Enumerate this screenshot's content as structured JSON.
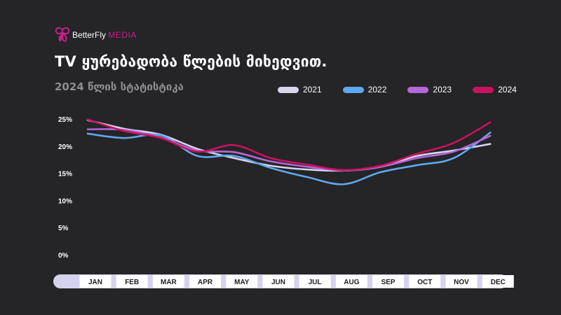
{
  "brand": {
    "name": "BetterFly",
    "suffix": "MEDIA",
    "accent_color": "#c4218a"
  },
  "chart_data": {
    "type": "line",
    "title": "TV ყურებადობა წლების მიხედვით.",
    "subtitle": "2024 წლის სტატისტიკა",
    "categories": [
      "JAN",
      "FEB",
      "MAR",
      "APR",
      "MAY",
      "JUN",
      "JUL",
      "AUG",
      "SEP",
      "OCT",
      "NOV",
      "DEC"
    ],
    "y_ticks": [
      "0%",
      "5%",
      "10%",
      "15%",
      "20%",
      "25%"
    ],
    "ylim": [
      0,
      25
    ],
    "legend_position": "top-right",
    "grid": false,
    "series": [
      {
        "name": "2021",
        "color": "#d7d5ee",
        "values": [
          24.8,
          23.2,
          22.1,
          19.5,
          17.8,
          16.4,
          15.7,
          15.5,
          16.2,
          18.2,
          19.2,
          20.4
        ]
      },
      {
        "name": "2022",
        "color": "#5fa8ee",
        "values": [
          22.3,
          21.5,
          22.0,
          18.2,
          18.2,
          16.0,
          14.3,
          13.0,
          15.2,
          16.5,
          17.8,
          22.5
        ]
      },
      {
        "name": "2023",
        "color": "#b467d8",
        "values": [
          23.1,
          23.0,
          21.6,
          19.2,
          18.9,
          17.2,
          16.2,
          15.5,
          16.2,
          17.8,
          19.0,
          21.9
        ]
      },
      {
        "name": "2024",
        "color": "#c8145f",
        "values": [
          24.9,
          22.8,
          21.5,
          19.0,
          20.2,
          17.8,
          16.6,
          15.6,
          16.4,
          18.6,
          20.6,
          24.4
        ]
      }
    ]
  }
}
